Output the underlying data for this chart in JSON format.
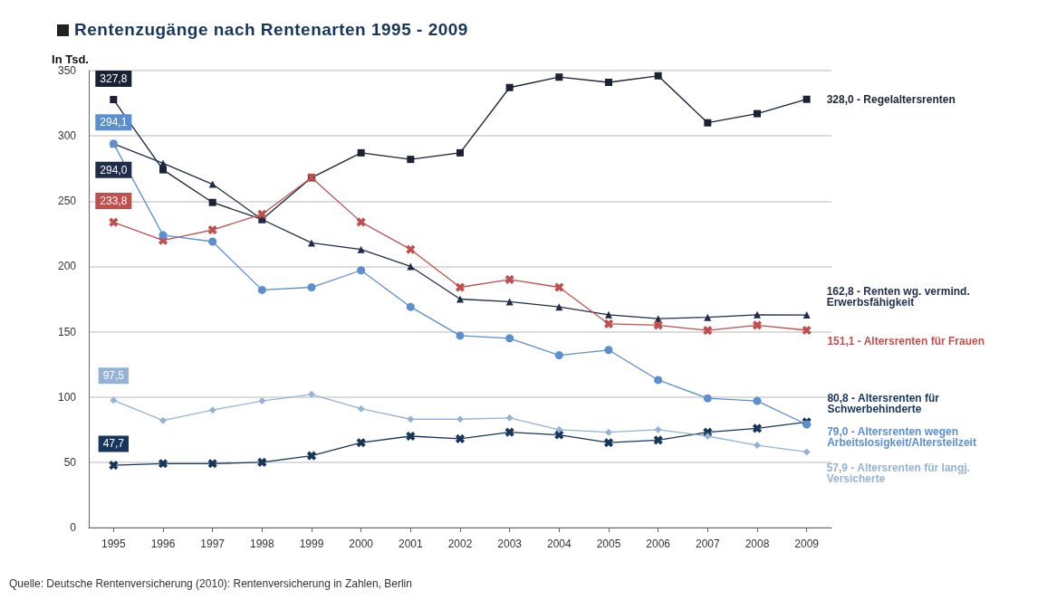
{
  "chart_data": {
    "type": "line",
    "title": "Rentenzugänge nach Rentenarten 1995 - 2009",
    "ylabel": "In Tsd.",
    "categories": [
      "1995",
      "1996",
      "1997",
      "1998",
      "1999",
      "2000",
      "2001",
      "2002",
      "2003",
      "2004",
      "2005",
      "2006",
      "2007",
      "2008",
      "2009"
    ],
    "ylim": [
      0,
      350
    ],
    "yticks": [
      0,
      50,
      100,
      150,
      200,
      250,
      300,
      350
    ],
    "grid": "y",
    "legend": false,
    "series": [
      {
        "name": "Regelaltersrenten",
        "color": "#1a2233",
        "marker": "square",
        "values": [
          327.8,
          274,
          249,
          236,
          268,
          287,
          282,
          287,
          337,
          345,
          341,
          346,
          310,
          317,
          328.0
        ],
        "value_labels": [
          "327,8",
          null,
          null,
          null,
          null,
          null,
          null,
          null,
          null,
          null,
          null,
          null,
          null,
          null,
          "328,0 -"
        ]
      },
      {
        "name": "Renten wg. vermind. Erwerbsfähigkeit",
        "color": "#1f2d4a",
        "marker": "triangle",
        "values": [
          294.0,
          279,
          263,
          236,
          218,
          213,
          200,
          175,
          173,
          169,
          163,
          160,
          161,
          163,
          162.8
        ],
        "value_labels": [
          "294,0",
          null,
          null,
          null,
          null,
          null,
          null,
          null,
          null,
          null,
          null,
          null,
          null,
          null,
          "162,8 -"
        ]
      },
      {
        "name": "Altersrenten für Frauen",
        "color": "#c0504d",
        "marker": "cross",
        "values": [
          233.8,
          220,
          228,
          240,
          268,
          234,
          213,
          184,
          190,
          184,
          156,
          155,
          151,
          155,
          151.1
        ],
        "value_labels": [
          "233,8",
          null,
          null,
          null,
          null,
          null,
          null,
          null,
          null,
          null,
          null,
          null,
          null,
          null,
          "151,1 -"
        ]
      },
      {
        "name": "Altersrenten für Schwerbehinderte",
        "color": "#17365d",
        "marker": "cross",
        "values": [
          47.7,
          49,
          49,
          50,
          55,
          65,
          70,
          68,
          73,
          71,
          65,
          67,
          73,
          76,
          80.8
        ],
        "value_labels": [
          "47,7",
          null,
          null,
          null,
          null,
          null,
          null,
          null,
          null,
          null,
          null,
          null,
          null,
          null,
          "80,8 -"
        ]
      },
      {
        "name": "Altersrenten wegen Arbeitslosigkeit/Altersteilzeit",
        "color": "#5b8fd0",
        "marker": "circle",
        "values": [
          294.1,
          224,
          219,
          182,
          184,
          197,
          169,
          147,
          145,
          132,
          136,
          113,
          99,
          97,
          79.0
        ],
        "value_labels": [
          "294,1",
          null,
          null,
          null,
          null,
          null,
          null,
          null,
          null,
          null,
          null,
          null,
          null,
          null,
          "79,0 -"
        ]
      },
      {
        "name": "Altersrenten für langj. Versicherte",
        "color": "#95b3d7",
        "marker": "diamond",
        "values": [
          97.5,
          82,
          90,
          97,
          102,
          91,
          83,
          83,
          84,
          75,
          73,
          75,
          70,
          63,
          57.9
        ],
        "value_labels": [
          "97,5",
          null,
          null,
          null,
          null,
          null,
          null,
          null,
          null,
          null,
          null,
          null,
          null,
          null,
          "57,9 -"
        ]
      }
    ],
    "annotations": [
      "Quelle: Deutsche Rentenversicherung (2010): Rentenversicherung in Zahlen, Berlin"
    ]
  }
}
